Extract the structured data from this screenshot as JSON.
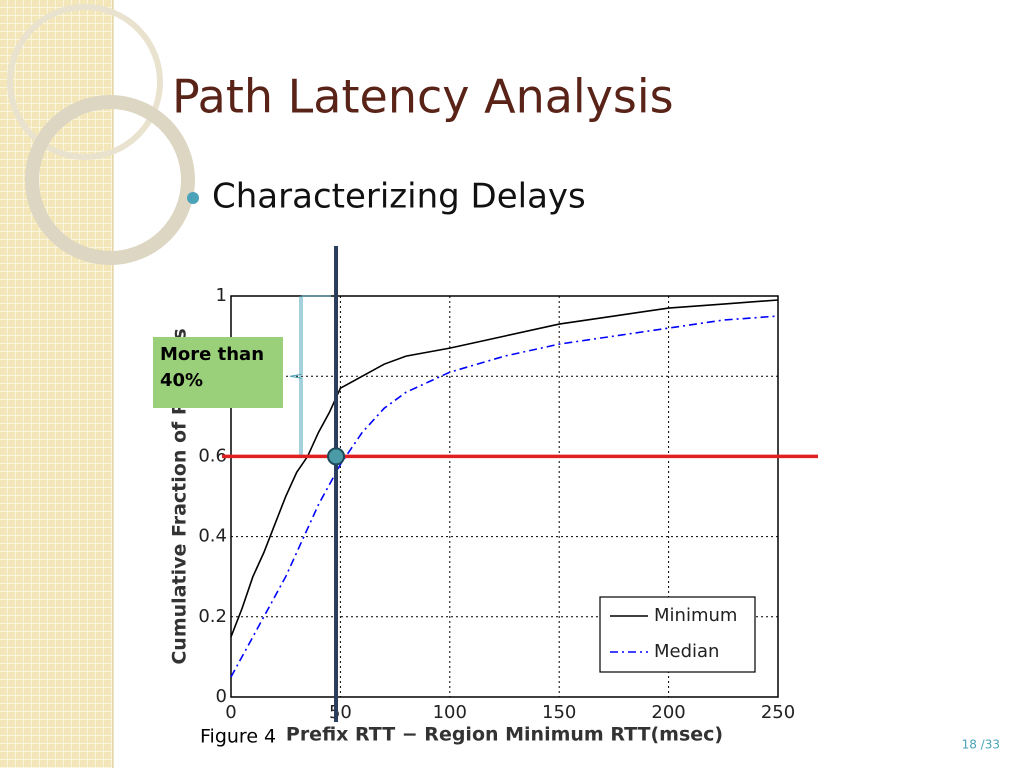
{
  "slide": {
    "title": "Path Latency Analysis",
    "bullet": "Characterizing Delays",
    "callout": "More than 40%",
    "figure_label": "Figure 4",
    "page_number": "18 /33"
  },
  "chart_data": {
    "type": "line",
    "xlabel": "Prefix RTT − Region Minimum RTT(msec)",
    "ylabel": "Cumulative Fraction of Prefixes",
    "x": [
      0,
      5,
      10,
      15,
      20,
      25,
      30,
      35,
      40,
      45,
      50,
      60,
      70,
      80,
      100,
      125,
      150,
      175,
      200,
      225,
      250
    ],
    "series": [
      {
        "name": "Minimum",
        "color": "#000000",
        "dash": "solid",
        "values": [
          0.15,
          0.22,
          0.3,
          0.36,
          0.43,
          0.5,
          0.56,
          0.6,
          0.66,
          0.71,
          0.77,
          0.8,
          0.83,
          0.85,
          0.87,
          0.9,
          0.93,
          0.95,
          0.97,
          0.98,
          0.99
        ]
      },
      {
        "name": "Median",
        "color": "#0000ff",
        "dash": "dashdot",
        "values": [
          0.05,
          0.1,
          0.15,
          0.2,
          0.25,
          0.3,
          0.36,
          0.42,
          0.48,
          0.53,
          0.58,
          0.66,
          0.72,
          0.76,
          0.81,
          0.85,
          0.88,
          0.9,
          0.92,
          0.94,
          0.95
        ]
      }
    ],
    "xlim": [
      0,
      250
    ],
    "xticks": [
      0,
      50,
      100,
      150,
      200,
      250
    ],
    "ylim": [
      0,
      1
    ],
    "yticks": [
      0,
      0.2,
      0.4,
      0.6,
      0.8,
      1
    ],
    "grid": true,
    "legend": "lower right",
    "reference_lines": {
      "x": 48,
      "y": 0.6
    }
  }
}
